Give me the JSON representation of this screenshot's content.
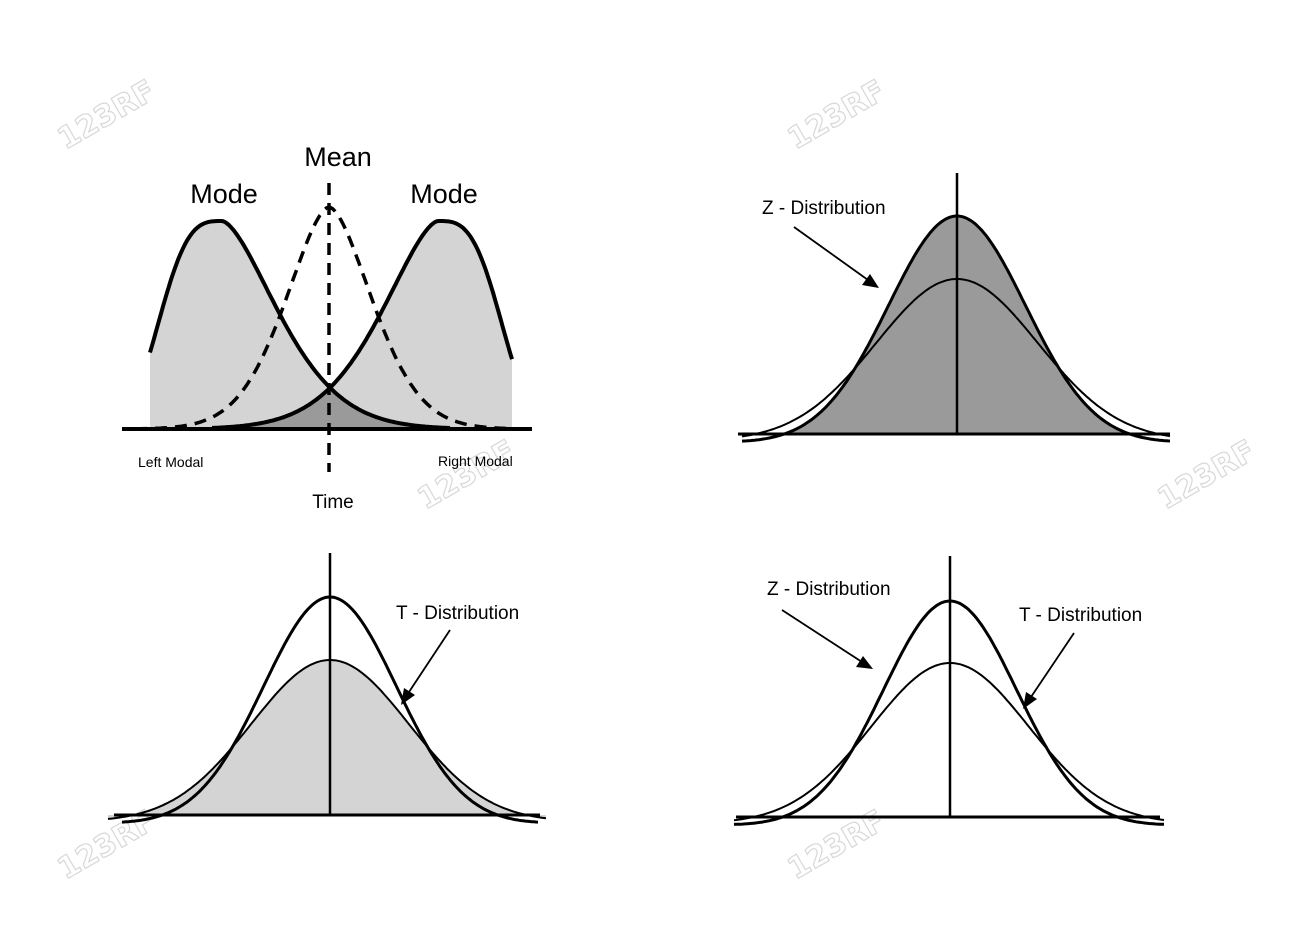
{
  "panels": {
    "bimodal": {
      "mean_label": "Mean",
      "mode_left_label": "Mode",
      "mode_right_label": "Mode",
      "left_modal_label": "Left Modal",
      "right_modal_label": "Right Modal",
      "axis_label": "Time"
    },
    "z_panel": {
      "z_label": "Z - Distribution"
    },
    "t_panel": {
      "t_label": "T -  Distribution"
    },
    "compare_panel": {
      "z_label": "Z - Distribution",
      "t_label": "T -  Distribution"
    }
  },
  "colors": {
    "light_fill": "#d4d4d4",
    "dark_fill": "#9a9a9a",
    "overlap_fill": "#9a9a9a",
    "line": "#000000"
  },
  "watermark": {
    "text": "123RF"
  }
}
